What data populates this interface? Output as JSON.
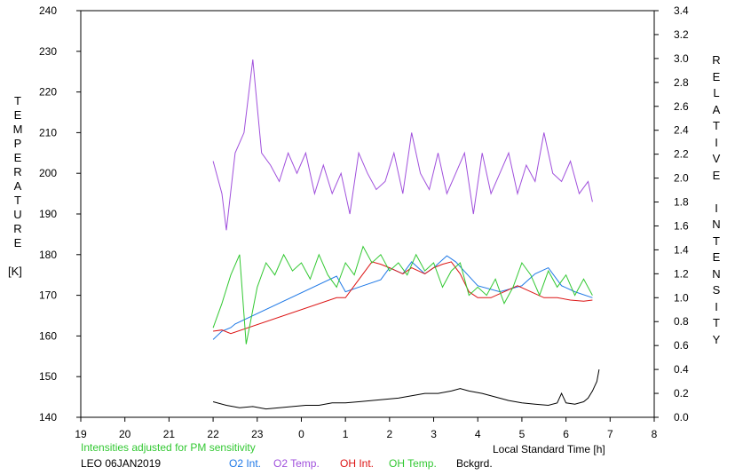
{
  "chart_data": {
    "type": "line",
    "ylabel_left": "TEMPERATURE",
    "ylabel_left_unit": "[K]",
    "ylabel_right": "RELATIVE INTENSITY",
    "xlabel": "Local Standard Time [h]",
    "note": "Intensities adjusted for PM sensitivity",
    "station_date": "LEO 06JAN2019",
    "x_ticks": [
      "19",
      "20",
      "21",
      "22",
      "23",
      "0",
      "1",
      "2",
      "3",
      "4",
      "5",
      "6",
      "7",
      "8"
    ],
    "y_left_ticks": [
      140,
      150,
      160,
      170,
      180,
      190,
      200,
      210,
      220,
      230,
      240
    ],
    "y_left_lim": [
      140,
      240
    ],
    "y_right_ticks": [
      "0.0",
      "0.2",
      "0.4",
      "0.6",
      "0.8",
      "1.0",
      "1.2",
      "1.4",
      "1.6",
      "1.8",
      "2.0",
      "2.2",
      "2.4",
      "2.6",
      "2.8",
      "3.0",
      "3.2",
      "3.4"
    ],
    "y_right_lim": [
      0,
      3.4
    ],
    "x_lim_hours_after_19": [
      0,
      13
    ],
    "series": [
      {
        "name": "O2 Int.",
        "color": "#1e78e6",
        "axis": "right",
        "points": [
          [
            22.0,
            0.65
          ],
          [
            22.2,
            0.72
          ],
          [
            22.4,
            0.75
          ],
          [
            22.5,
            0.78
          ],
          [
            24.8,
            1.18
          ],
          [
            25.0,
            1.05
          ],
          [
            25.4,
            1.1
          ],
          [
            25.8,
            1.15
          ],
          [
            26.0,
            1.25
          ],
          [
            26.3,
            1.2
          ],
          [
            26.5,
            1.3
          ],
          [
            26.8,
            1.2
          ],
          [
            27.0,
            1.25
          ],
          [
            27.3,
            1.35
          ],
          [
            27.5,
            1.3
          ],
          [
            27.7,
            1.22
          ],
          [
            28.0,
            1.1
          ],
          [
            28.5,
            1.05
          ],
          [
            29.0,
            1.1
          ],
          [
            29.3,
            1.2
          ],
          [
            29.6,
            1.25
          ],
          [
            29.9,
            1.1
          ],
          [
            30.2,
            1.05
          ],
          [
            30.6,
            1.0
          ]
        ]
      },
      {
        "name": "O2 Temp.",
        "color": "#a050dc",
        "axis": "left",
        "points": [
          [
            22.0,
            203
          ],
          [
            22.2,
            195
          ],
          [
            22.3,
            186
          ],
          [
            22.5,
            205
          ],
          [
            22.7,
            210
          ],
          [
            22.9,
            228
          ],
          [
            23.1,
            205
          ],
          [
            23.3,
            202
          ],
          [
            23.5,
            198
          ],
          [
            23.7,
            205
          ],
          [
            23.9,
            200
          ],
          [
            24.1,
            205
          ],
          [
            24.3,
            195
          ],
          [
            24.5,
            202
          ],
          [
            24.7,
            195
          ],
          [
            24.9,
            200
          ],
          [
            25.1,
            190
          ],
          [
            25.3,
            205
          ],
          [
            25.5,
            200
          ],
          [
            25.7,
            196
          ],
          [
            25.9,
            198
          ],
          [
            26.1,
            205
          ],
          [
            26.3,
            195
          ],
          [
            26.5,
            210
          ],
          [
            26.7,
            200
          ],
          [
            26.9,
            196
          ],
          [
            27.1,
            205
          ],
          [
            27.3,
            195
          ],
          [
            27.5,
            200
          ],
          [
            27.7,
            205
          ],
          [
            27.9,
            190
          ],
          [
            28.1,
            205
          ],
          [
            28.3,
            195
          ],
          [
            28.5,
            200
          ],
          [
            28.7,
            205
          ],
          [
            28.9,
            195
          ],
          [
            29.1,
            202
          ],
          [
            29.3,
            198
          ],
          [
            29.5,
            210
          ],
          [
            29.7,
            200
          ],
          [
            29.9,
            198
          ],
          [
            30.1,
            203
          ],
          [
            30.3,
            195
          ],
          [
            30.5,
            198
          ],
          [
            30.6,
            193
          ]
        ]
      },
      {
        "name": "OH Int.",
        "color": "#dc1414",
        "axis": "right",
        "points": [
          [
            22.0,
            0.72
          ],
          [
            22.2,
            0.73
          ],
          [
            22.4,
            0.7
          ],
          [
            24.8,
            1.0
          ],
          [
            25.0,
            1.0
          ],
          [
            25.2,
            1.1
          ],
          [
            25.4,
            1.2
          ],
          [
            25.6,
            1.3
          ],
          [
            25.8,
            1.28
          ],
          [
            26.0,
            1.25
          ],
          [
            26.3,
            1.2
          ],
          [
            26.5,
            1.25
          ],
          [
            26.8,
            1.2
          ],
          [
            27.0,
            1.25
          ],
          [
            27.2,
            1.28
          ],
          [
            27.4,
            1.3
          ],
          [
            27.6,
            1.2
          ],
          [
            27.8,
            1.05
          ],
          [
            28.0,
            1.0
          ],
          [
            28.3,
            1.0
          ],
          [
            28.6,
            1.05
          ],
          [
            28.9,
            1.1
          ],
          [
            29.2,
            1.05
          ],
          [
            29.5,
            1.0
          ],
          [
            29.8,
            1.0
          ],
          [
            30.1,
            0.98
          ],
          [
            30.4,
            0.97
          ],
          [
            30.6,
            0.98
          ]
        ]
      },
      {
        "name": "OH Temp.",
        "color": "#32c832",
        "axis": "left",
        "points": [
          [
            22.0,
            162
          ],
          [
            22.2,
            168
          ],
          [
            22.4,
            175
          ],
          [
            22.6,
            180
          ],
          [
            22.75,
            158
          ],
          [
            23.0,
            172
          ],
          [
            23.2,
            178
          ],
          [
            23.4,
            175
          ],
          [
            23.6,
            180
          ],
          [
            23.8,
            176
          ],
          [
            24.0,
            178
          ],
          [
            24.2,
            174
          ],
          [
            24.4,
            180
          ],
          [
            24.6,
            175
          ],
          [
            24.8,
            172
          ],
          [
            25.0,
            178
          ],
          [
            25.2,
            175
          ],
          [
            25.4,
            182
          ],
          [
            25.6,
            178
          ],
          [
            25.8,
            180
          ],
          [
            26.0,
            176
          ],
          [
            26.2,
            178
          ],
          [
            26.4,
            175
          ],
          [
            26.6,
            180
          ],
          [
            26.8,
            176
          ],
          [
            27.0,
            178
          ],
          [
            27.2,
            172
          ],
          [
            27.4,
            176
          ],
          [
            27.6,
            178
          ],
          [
            27.8,
            170
          ],
          [
            28.0,
            172
          ],
          [
            28.2,
            170
          ],
          [
            28.4,
            174
          ],
          [
            28.6,
            168
          ],
          [
            28.8,
            172
          ],
          [
            29.0,
            178
          ],
          [
            29.2,
            175
          ],
          [
            29.4,
            170
          ],
          [
            29.6,
            176
          ],
          [
            29.8,
            172
          ],
          [
            30.0,
            175
          ],
          [
            30.2,
            170
          ],
          [
            30.4,
            174
          ],
          [
            30.6,
            170
          ]
        ]
      },
      {
        "name": "Bckgrd.",
        "color": "#000000",
        "axis": "right",
        "points": [
          [
            22.0,
            0.13
          ],
          [
            22.3,
            0.1
          ],
          [
            22.6,
            0.08
          ],
          [
            22.9,
            0.09
          ],
          [
            23.2,
            0.07
          ],
          [
            23.5,
            0.08
          ],
          [
            23.8,
            0.09
          ],
          [
            24.1,
            0.1
          ],
          [
            24.4,
            0.1
          ],
          [
            24.7,
            0.12
          ],
          [
            25.0,
            0.12
          ],
          [
            25.3,
            0.13
          ],
          [
            25.6,
            0.14
          ],
          [
            25.9,
            0.15
          ],
          [
            26.2,
            0.16
          ],
          [
            26.5,
            0.18
          ],
          [
            26.8,
            0.2
          ],
          [
            27.1,
            0.2
          ],
          [
            27.4,
            0.22
          ],
          [
            27.6,
            0.24
          ],
          [
            27.8,
            0.22
          ],
          [
            28.1,
            0.2
          ],
          [
            28.4,
            0.17
          ],
          [
            28.7,
            0.14
          ],
          [
            29.0,
            0.12
          ],
          [
            29.3,
            0.11
          ],
          [
            29.6,
            0.1
          ],
          [
            29.8,
            0.12
          ],
          [
            29.9,
            0.2
          ],
          [
            30.0,
            0.12
          ],
          [
            30.2,
            0.11
          ],
          [
            30.4,
            0.13
          ],
          [
            30.5,
            0.16
          ],
          [
            30.6,
            0.22
          ],
          [
            30.7,
            0.3
          ],
          [
            30.75,
            0.4
          ]
        ]
      }
    ]
  }
}
